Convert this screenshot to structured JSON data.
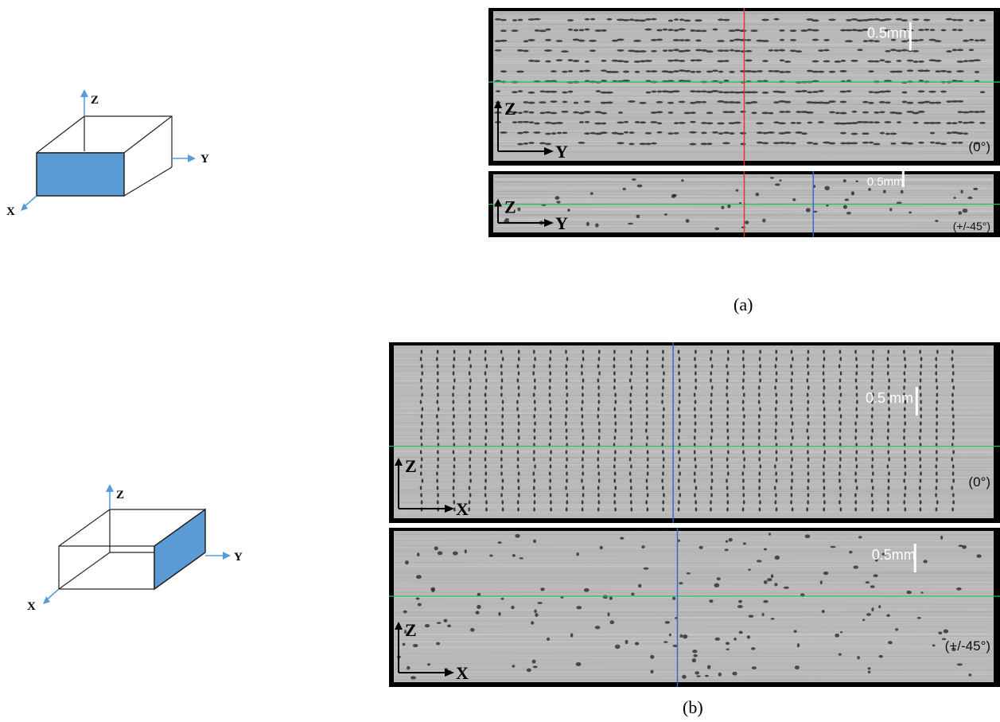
{
  "figure": {
    "caption_a": "(a)",
    "caption_b": "(b)"
  },
  "diagram_a": {
    "axis_z": "Z",
    "axis_y": "Y",
    "axis_x": "X",
    "face_color": "#5b9bd5",
    "axis_color": "#5b9bd5"
  },
  "diagram_b": {
    "axis_z": "Z",
    "axis_y": "Y",
    "axis_x": "X",
    "face_color": "#5b9bd5",
    "axis_color": "#5b9bd5"
  },
  "panels": [
    {
      "id": "a-top",
      "scale": "0.5mm",
      "angle": "(0°)",
      "axis_v": "Z",
      "axis_h": "Y",
      "pattern": "horizontal-layers"
    },
    {
      "id": "a-bottom",
      "scale": "0.5mm",
      "angle": "(+/-45°)",
      "axis_v": "Z",
      "axis_h": "Y",
      "pattern": "scattered-pores"
    },
    {
      "id": "b-top",
      "scale": "0.5 mm",
      "angle": "(0°)",
      "axis_v": "Z",
      "axis_h": "X",
      "pattern": "vertical-columns"
    },
    {
      "id": "b-bottom",
      "scale": "0.5mm",
      "angle": "(+/-45°)",
      "axis_v": "Z",
      "axis_h": "X",
      "pattern": "scattered-pores"
    }
  ],
  "guide_colors": {
    "green": "#22c55e",
    "red": "#ef2b2b",
    "blue": "#3a5fd8"
  }
}
